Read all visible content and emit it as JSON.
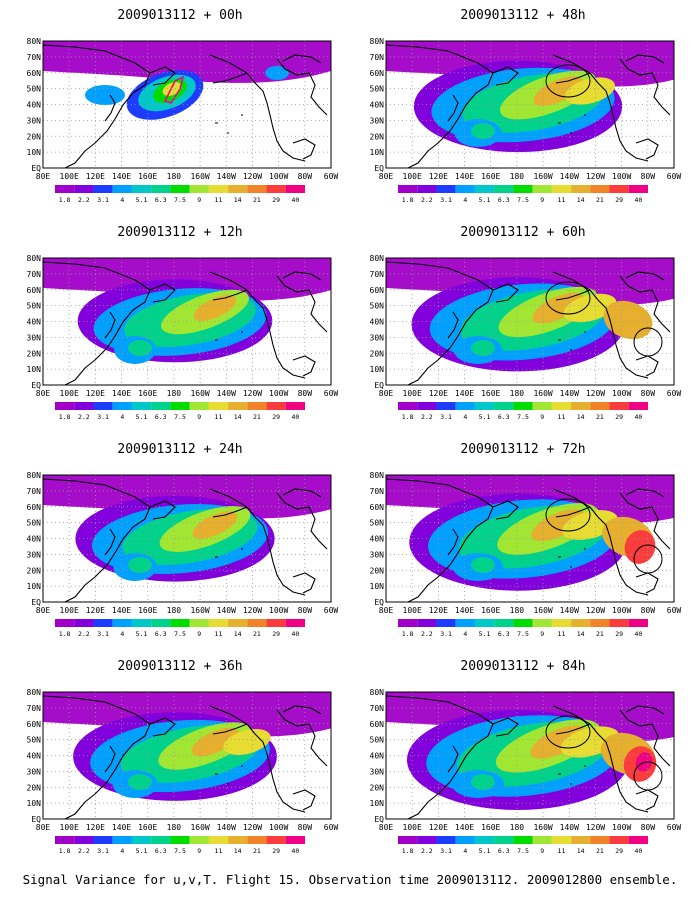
{
  "footer": "Signal Variance for u,v,T. Flight 15. Observation time 2009013112. 2009012800 ensemble.",
  "colorbar": {
    "labels": [
      "1.8",
      "2.2",
      "3.1",
      "4",
      "5.1",
      "6.3",
      "7.5",
      "9",
      "11",
      "14",
      "21",
      "29",
      "40"
    ],
    "colors": [
      "#a000c8",
      "#8200dc",
      "#1e3cff",
      "#00a0ff",
      "#00c8c8",
      "#00d28c",
      "#00dc00",
      "#a0e632",
      "#e6dc32",
      "#e6af2d",
      "#f08228",
      "#fa3c3c",
      "#f00082"
    ]
  },
  "axes": {
    "lat_labels": [
      "80N",
      "70N",
      "60N",
      "50N",
      "40N",
      "30N",
      "20N",
      "10N",
      "EQ"
    ],
    "lon_labels": [
      "80E",
      "100E",
      "120E",
      "140E",
      "160E",
      "180",
      "160W",
      "140W",
      "120W",
      "100W",
      "80W",
      "60W"
    ]
  },
  "panels": [
    {
      "title": "2009013112 + 00h",
      "lead": 0
    },
    {
      "title": "2009013112 + 12h",
      "lead": 12
    },
    {
      "title": "2009013112 + 24h",
      "lead": 24
    },
    {
      "title": "2009013112 + 36h",
      "lead": 36
    },
    {
      "title": "2009013112 + 48h",
      "lead": 48
    },
    {
      "title": "2009013112 + 60h",
      "lead": 60
    },
    {
      "title": "2009013112 + 72h",
      "lead": 72
    },
    {
      "title": "2009013112 + 84h",
      "lead": 84
    }
  ]
}
